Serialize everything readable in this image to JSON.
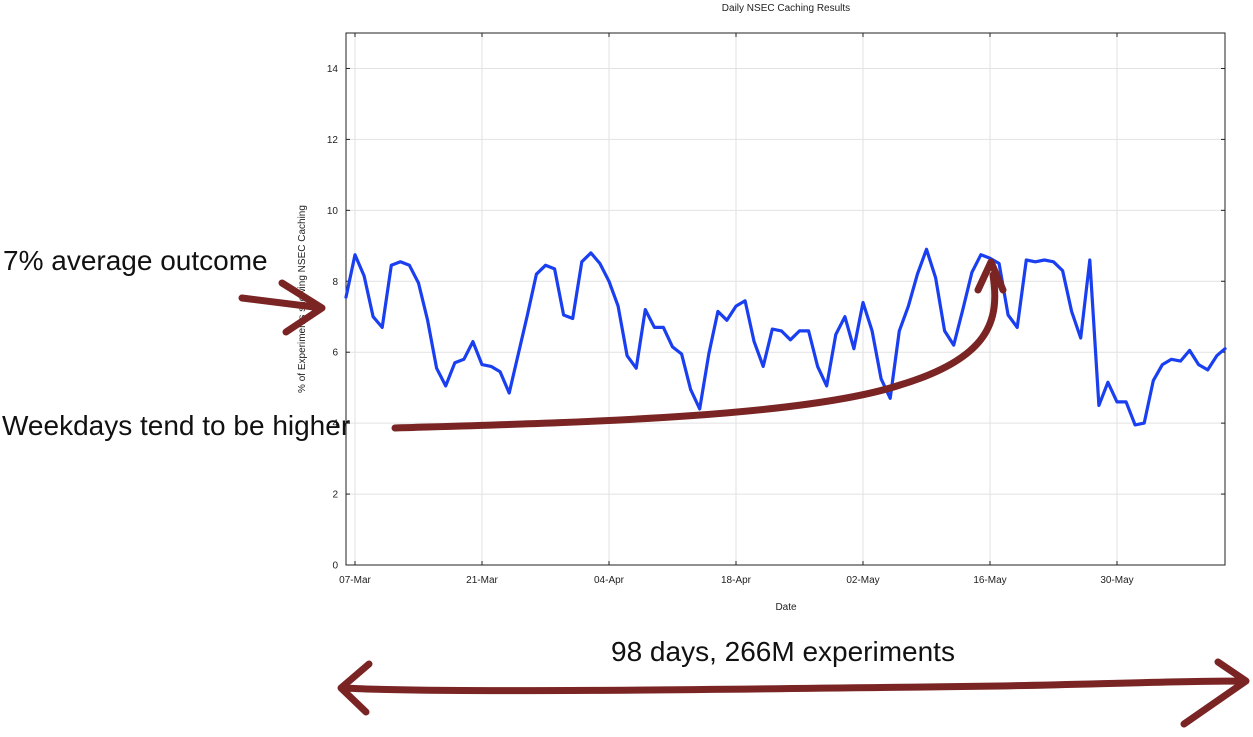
{
  "chart_data": {
    "type": "line",
    "title": "Daily NSEC Caching Results",
    "xlabel": "Date",
    "ylabel": "% of Experiments showing NSEC Caching",
    "ylim": [
      0,
      15
    ],
    "yticks": [
      0,
      2,
      4,
      6,
      8,
      10,
      12,
      14
    ],
    "xticks": [
      {
        "label": "07-Mar",
        "x": "2023-03-07"
      },
      {
        "label": "21-Mar",
        "x": "2023-03-21"
      },
      {
        "label": "04-Apr",
        "x": "2023-04-04"
      },
      {
        "label": "18-Apr",
        "x": "2023-04-18"
      },
      {
        "label": "02-May",
        "x": "2023-05-02"
      },
      {
        "label": "16-May",
        "x": "2023-05-16"
      },
      {
        "label": "30-May",
        "x": "2023-05-30"
      }
    ],
    "grid": true,
    "series": [
      {
        "color": "#1a3ff0",
        "points": [
          [
            "2023-03-06",
            7.55
          ],
          [
            "2023-03-07",
            8.75
          ],
          [
            "2023-03-08",
            8.15
          ],
          [
            "2023-03-09",
            7.0
          ],
          [
            "2023-03-10",
            6.7
          ],
          [
            "2023-03-11",
            8.45
          ],
          [
            "2023-03-12",
            8.55
          ],
          [
            "2023-03-13",
            8.45
          ],
          [
            "2023-03-14",
            7.95
          ],
          [
            "2023-03-15",
            6.9
          ],
          [
            "2023-03-16",
            5.55
          ],
          [
            "2023-03-17",
            5.05
          ],
          [
            "2023-03-18",
            5.7
          ],
          [
            "2023-03-19",
            5.8
          ],
          [
            "2023-03-20",
            6.3
          ],
          [
            "2023-03-21",
            5.65
          ],
          [
            "2023-03-22",
            5.6
          ],
          [
            "2023-03-23",
            5.45
          ],
          [
            "2023-03-24",
            4.85
          ],
          [
            "2023-03-25",
            5.95
          ],
          [
            "2023-03-26",
            7.05
          ],
          [
            "2023-03-27",
            8.2
          ],
          [
            "2023-03-28",
            8.45
          ],
          [
            "2023-03-29",
            8.35
          ],
          [
            "2023-03-30",
            7.05
          ],
          [
            "2023-03-31",
            6.95
          ],
          [
            "2023-04-01",
            8.55
          ],
          [
            "2023-04-02",
            8.8
          ],
          [
            "2023-04-03",
            8.5
          ],
          [
            "2023-04-04",
            8.0
          ],
          [
            "2023-04-05",
            7.3
          ],
          [
            "2023-04-06",
            5.9
          ],
          [
            "2023-04-07",
            5.55
          ],
          [
            "2023-04-08",
            7.2
          ],
          [
            "2023-04-09",
            6.7
          ],
          [
            "2023-04-10",
            6.7
          ],
          [
            "2023-04-11",
            6.15
          ],
          [
            "2023-04-12",
            5.95
          ],
          [
            "2023-04-13",
            4.95
          ],
          [
            "2023-04-14",
            4.4
          ],
          [
            "2023-04-15",
            5.95
          ],
          [
            "2023-04-16",
            7.15
          ],
          [
            "2023-04-17",
            6.9
          ],
          [
            "2023-04-18",
            7.3
          ],
          [
            "2023-04-19",
            7.45
          ],
          [
            "2023-04-20",
            6.3
          ],
          [
            "2023-04-21",
            5.6
          ],
          [
            "2023-04-22",
            6.65
          ],
          [
            "2023-04-23",
            6.6
          ],
          [
            "2023-04-24",
            6.35
          ],
          [
            "2023-04-25",
            6.6
          ],
          [
            "2023-04-26",
            6.6
          ],
          [
            "2023-04-27",
            5.6
          ],
          [
            "2023-04-28",
            5.05
          ],
          [
            "2023-04-29",
            6.5
          ],
          [
            "2023-04-30",
            7.0
          ],
          [
            "2023-05-01",
            6.1
          ],
          [
            "2023-05-02",
            7.4
          ],
          [
            "2023-05-03",
            6.6
          ],
          [
            "2023-05-04",
            5.25
          ],
          [
            "2023-05-05",
            4.7
          ],
          [
            "2023-05-06",
            6.6
          ],
          [
            "2023-05-07",
            7.3
          ],
          [
            "2023-05-08",
            8.2
          ],
          [
            "2023-05-09",
            8.9
          ],
          [
            "2023-05-10",
            8.1
          ],
          [
            "2023-05-11",
            6.6
          ],
          [
            "2023-05-12",
            6.2
          ],
          [
            "2023-05-13",
            7.2
          ],
          [
            "2023-05-14",
            8.25
          ],
          [
            "2023-05-15",
            8.75
          ],
          [
            "2023-05-16",
            8.65
          ],
          [
            "2023-05-17",
            8.5
          ],
          [
            "2023-05-18",
            7.05
          ],
          [
            "2023-05-19",
            6.7
          ],
          [
            "2023-05-20",
            8.6
          ],
          [
            "2023-05-21",
            8.55
          ],
          [
            "2023-05-22",
            8.6
          ],
          [
            "2023-05-23",
            8.55
          ],
          [
            "2023-05-24",
            8.3
          ],
          [
            "2023-05-25",
            7.15
          ],
          [
            "2023-05-26",
            6.4
          ],
          [
            "2023-05-27",
            8.6
          ],
          [
            "2023-05-28",
            4.5
          ],
          [
            "2023-05-29",
            5.15
          ],
          [
            "2023-05-30",
            4.6
          ],
          [
            "2023-05-31",
            4.6
          ],
          [
            "2023-06-01",
            3.95
          ],
          [
            "2023-06-02",
            4.0
          ],
          [
            "2023-06-03",
            5.2
          ],
          [
            "2023-06-04",
            5.65
          ],
          [
            "2023-06-05",
            5.8
          ],
          [
            "2023-06-06",
            5.75
          ],
          [
            "2023-06-07",
            6.05
          ],
          [
            "2023-06-08",
            5.65
          ],
          [
            "2023-06-09",
            5.5
          ],
          [
            "2023-06-10",
            5.9
          ],
          [
            "2023-06-11",
            6.1
          ]
        ]
      }
    ],
    "annotations": [
      {
        "text": "7% average outcome"
      },
      {
        "text": "Weekdays tend to be higher"
      },
      {
        "text": "98 days, 266M experiments"
      }
    ],
    "annotation_color": "#7a2424"
  }
}
